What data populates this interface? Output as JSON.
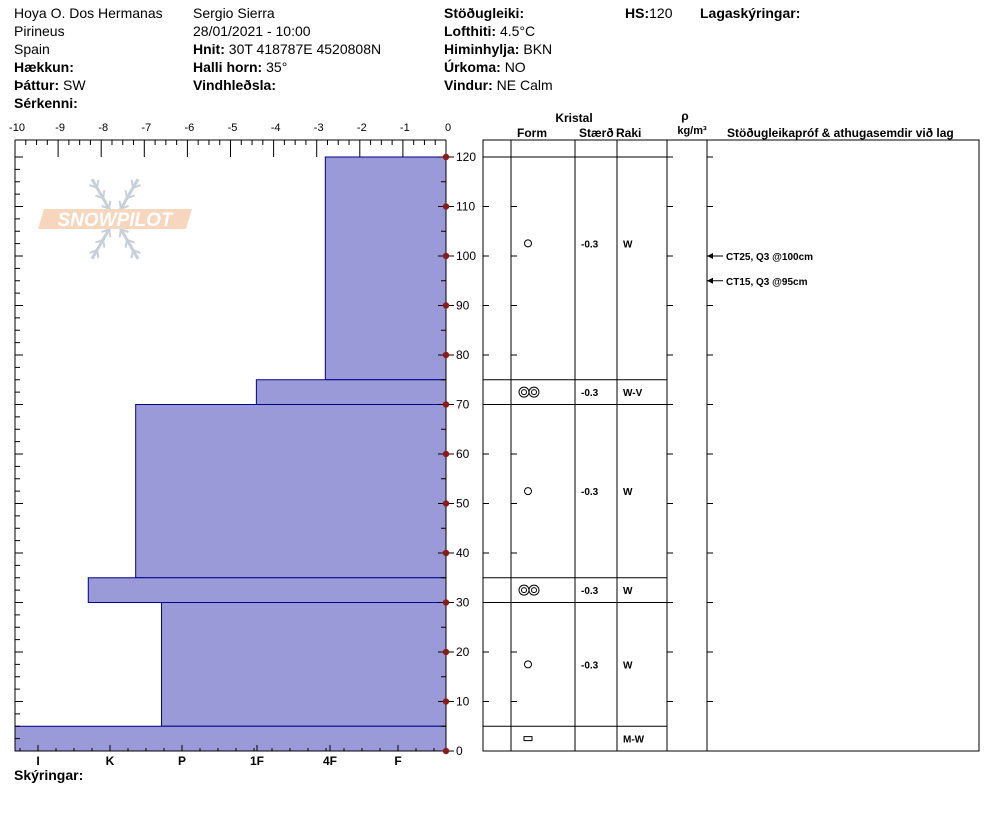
{
  "header": {
    "location": "Hoya O. Dos Hermanas",
    "range": "Pirineus",
    "country": "Spain",
    "elevation_label": "Hækkun:",
    "aspect_label": "Þáttur:",
    "aspect_value": "SW",
    "specifics_label": "Sérkenni:",
    "observer": "Sergio Sierra",
    "datetime": "28/01/2021 - 10:00",
    "coords_label": "Hnit:",
    "coords_value": "30T 418787E 4520808N",
    "slope_label": "Halli horn:",
    "slope_value": "35°",
    "windload_label": "Vindhleðsla:",
    "stability_label": "Stöðugleiki:",
    "airtemp_label": "Lofthiti:",
    "airtemp_value": "4.5°C",
    "sky_label": "Himinhylja:",
    "sky_value": "BKN",
    "precip_label": "Úrkoma:",
    "precip_value": "NO",
    "wind_label": "Vindur:",
    "wind_value": "NE Calm",
    "hs_label": "HS:",
    "hs_value": "120",
    "layer_notes_label": "Lagaskýringar:"
  },
  "logo": {
    "text": "SNOWPILOT"
  },
  "footer": {
    "notes_label": "Skýringar:"
  },
  "table": {
    "crystal_header": "Kristal",
    "form_header": "Form",
    "size_header": "Stærð",
    "moisture_header": "Raki",
    "density_header": "ρ",
    "density_unit": "kg/m³",
    "tests_header": "Stöðugleikapróf & athugasemdir við lag"
  },
  "chart_data": {
    "type": "bar",
    "temperature_axis": {
      "ticks": [
        "-10",
        "-9",
        "-8",
        "-7",
        "-6",
        "-5",
        "-4",
        "-3",
        "-2",
        "-1",
        "0"
      ],
      "range": [
        -10,
        0
      ]
    },
    "height_axis": {
      "range": [
        0,
        120
      ],
      "ticks": [
        "0",
        "10",
        "20",
        "30",
        "40",
        "50",
        "60",
        "70",
        "80",
        "90",
        "100",
        "110",
        "120"
      ]
    },
    "hardness_axis": {
      "ticks": [
        "I",
        "K",
        "P",
        "1F",
        "4F",
        "F"
      ]
    },
    "layers": [
      {
        "bottom": 75,
        "top": 120,
        "hardness": -2.8,
        "form": "circle",
        "size": "-0.3",
        "moisture": "W"
      },
      {
        "bottom": 70,
        "top": 75,
        "hardness": -4.4,
        "form": "double-circle",
        "size": "-0.3",
        "moisture": "W-V"
      },
      {
        "bottom": 35,
        "top": 70,
        "hardness": -7.2,
        "form": "circle",
        "size": "-0.3",
        "moisture": "W"
      },
      {
        "bottom": 30,
        "top": 35,
        "hardness": -8.3,
        "form": "double-circle",
        "size": "-0.3",
        "moisture": "W"
      },
      {
        "bottom": 5,
        "top": 30,
        "hardness": -6.6,
        "form": "circle",
        "size": "-0.3",
        "moisture": "W"
      },
      {
        "bottom": 0,
        "top": 5,
        "hardness": -10,
        "form": "rect",
        "size": "",
        "moisture": "M-W"
      }
    ],
    "tests": [
      {
        "height": 100,
        "text": "CT25, Q3 @100cm"
      },
      {
        "height": 95,
        "text": "CT15, Q3 @95cm"
      }
    ],
    "colors": {
      "bar_fill": "#9a9ad8",
      "bar_stroke": "#00008b",
      "marker": "#8b1a1a"
    }
  }
}
